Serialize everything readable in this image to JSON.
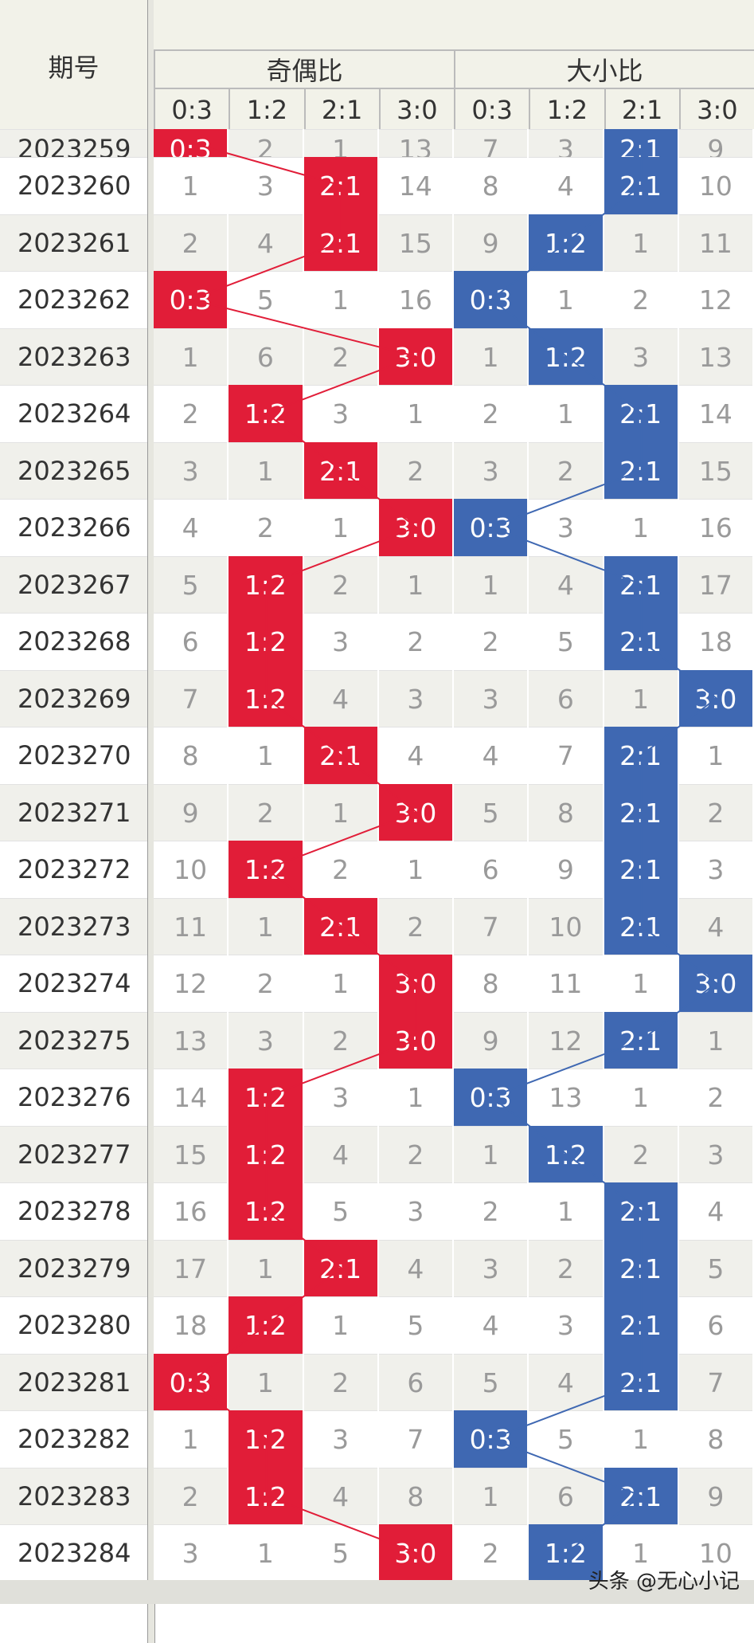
{
  "header": {
    "period_label": "期号",
    "groups": [
      {
        "label": "奇偶比",
        "color": "#e11d38"
      },
      {
        "label": "大小比",
        "color": "#3f68b2"
      }
    ],
    "columns": [
      "0:3",
      "1:2",
      "2:1",
      "3:0"
    ]
  },
  "partial_top_row": {
    "period": "2023259",
    "odd_even": [
      "0:3",
      "2",
      "1",
      "13"
    ],
    "big_small": [
      "7",
      "3",
      "2:1",
      "9"
    ]
  },
  "rows": [
    {
      "period": "2023260",
      "odd_even": [
        "1",
        "3",
        "2:1",
        "14"
      ],
      "big_small": [
        "8",
        "4",
        "2:1",
        "10"
      ]
    },
    {
      "period": "2023261",
      "odd_even": [
        "2",
        "4",
        "2:1",
        "15"
      ],
      "big_small": [
        "9",
        "1:2",
        "1",
        "11"
      ]
    },
    {
      "period": "2023262",
      "odd_even": [
        "0:3",
        "5",
        "1",
        "16"
      ],
      "big_small": [
        "0:3",
        "1",
        "2",
        "12"
      ]
    },
    {
      "period": "2023263",
      "odd_even": [
        "1",
        "6",
        "2",
        "3:0"
      ],
      "big_small": [
        "1",
        "1:2",
        "3",
        "13"
      ]
    },
    {
      "period": "2023264",
      "odd_even": [
        "2",
        "1:2",
        "3",
        "1"
      ],
      "big_small": [
        "2",
        "1",
        "2:1",
        "14"
      ]
    },
    {
      "period": "2023265",
      "odd_even": [
        "3",
        "1",
        "2:1",
        "2"
      ],
      "big_small": [
        "3",
        "2",
        "2:1",
        "15"
      ]
    },
    {
      "period": "2023266",
      "odd_even": [
        "4",
        "2",
        "1",
        "3:0"
      ],
      "big_small": [
        "0:3",
        "3",
        "1",
        "16"
      ]
    },
    {
      "period": "2023267",
      "odd_even": [
        "5",
        "1:2",
        "2",
        "1"
      ],
      "big_small": [
        "1",
        "4",
        "2:1",
        "17"
      ]
    },
    {
      "period": "2023268",
      "odd_even": [
        "6",
        "1:2",
        "3",
        "2"
      ],
      "big_small": [
        "2",
        "5",
        "2:1",
        "18"
      ]
    },
    {
      "period": "2023269",
      "odd_even": [
        "7",
        "1:2",
        "4",
        "3"
      ],
      "big_small": [
        "3",
        "6",
        "1",
        "3:0"
      ]
    },
    {
      "period": "2023270",
      "odd_even": [
        "8",
        "1",
        "2:1",
        "4"
      ],
      "big_small": [
        "4",
        "7",
        "2:1",
        "1"
      ]
    },
    {
      "period": "2023271",
      "odd_even": [
        "9",
        "2",
        "1",
        "3:0"
      ],
      "big_small": [
        "5",
        "8",
        "2:1",
        "2"
      ]
    },
    {
      "period": "2023272",
      "odd_even": [
        "10",
        "1:2",
        "2",
        "1"
      ],
      "big_small": [
        "6",
        "9",
        "2:1",
        "3"
      ]
    },
    {
      "period": "2023273",
      "odd_even": [
        "11",
        "1",
        "2:1",
        "2"
      ],
      "big_small": [
        "7",
        "10",
        "2:1",
        "4"
      ]
    },
    {
      "period": "2023274",
      "odd_even": [
        "12",
        "2",
        "1",
        "3:0"
      ],
      "big_small": [
        "8",
        "11",
        "1",
        "3:0"
      ]
    },
    {
      "period": "2023275",
      "odd_even": [
        "13",
        "3",
        "2",
        "3:0"
      ],
      "big_small": [
        "9",
        "12",
        "2:1",
        "1"
      ]
    },
    {
      "period": "2023276",
      "odd_even": [
        "14",
        "1:2",
        "3",
        "1"
      ],
      "big_small": [
        "0:3",
        "13",
        "1",
        "2"
      ]
    },
    {
      "period": "2023277",
      "odd_even": [
        "15",
        "1:2",
        "4",
        "2"
      ],
      "big_small": [
        "1",
        "1:2",
        "2",
        "3"
      ]
    },
    {
      "period": "2023278",
      "odd_even": [
        "16",
        "1:2",
        "5",
        "3"
      ],
      "big_small": [
        "2",
        "1",
        "2:1",
        "4"
      ]
    },
    {
      "period": "2023279",
      "odd_even": [
        "17",
        "1",
        "2:1",
        "4"
      ],
      "big_small": [
        "3",
        "2",
        "2:1",
        "5"
      ]
    },
    {
      "period": "2023280",
      "odd_even": [
        "18",
        "1:2",
        "1",
        "5"
      ],
      "big_small": [
        "4",
        "3",
        "2:1",
        "6"
      ]
    },
    {
      "period": "2023281",
      "odd_even": [
        "0:3",
        "1",
        "2",
        "6"
      ],
      "big_small": [
        "5",
        "4",
        "2:1",
        "7"
      ]
    },
    {
      "period": "2023282",
      "odd_even": [
        "1",
        "1:2",
        "3",
        "7"
      ],
      "big_small": [
        "0:3",
        "5",
        "1",
        "8"
      ]
    },
    {
      "period": "2023283",
      "odd_even": [
        "2",
        "1:2",
        "4",
        "8"
      ],
      "big_small": [
        "1",
        "6",
        "2:1",
        "9"
      ]
    },
    {
      "period": "2023284",
      "odd_even": [
        "3",
        "1",
        "5",
        "3:0"
      ],
      "big_small": [
        "2",
        "1:2",
        "1",
        "10"
      ]
    }
  ],
  "watermark": "头条 @无心小记",
  "colors": {
    "odd_even_hit": "#e11d38",
    "big_small_hit": "#3f68b2",
    "row_alt": "#f0f0eb",
    "row_plain": "#ffffff",
    "grid": "#ffffff"
  }
}
